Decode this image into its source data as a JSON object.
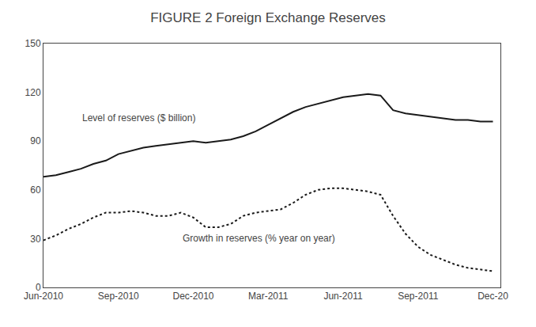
{
  "chart_data": {
    "type": "line",
    "title": "FIGURE 2 Foreign Exchange Reserves",
    "x": [
      0,
      0.5,
      1,
      1.5,
      2,
      2.5,
      3,
      3.5,
      4,
      4.5,
      5,
      5.5,
      6,
      6.5,
      7,
      7.5,
      8,
      8.5,
      9,
      9.5,
      10,
      10.5,
      11,
      11.5,
      12,
      12.5,
      13,
      13.5,
      14,
      14.5,
      15,
      15.5,
      16,
      16.5,
      17,
      17.5,
      18
    ],
    "series": [
      {
        "color": "#1a1a1a",
        "line_style": "solid",
        "values": [
          68,
          69,
          71,
          73,
          76,
          78,
          82,
          84,
          86,
          87,
          88,
          89,
          90,
          89,
          90,
          91,
          93,
          96,
          100,
          104,
          108,
          111,
          113,
          115,
          117,
          118,
          119,
          118,
          109,
          107,
          106,
          105,
          104,
          103,
          103,
          102,
          102
        ]
      },
      {
        "color": "#1a1a1a",
        "line_style": "dotted",
        "values": [
          29,
          32,
          36,
          39,
          43,
          46,
          46,
          47,
          46,
          44,
          44,
          46,
          43,
          37,
          37,
          39,
          44,
          46,
          47,
          48,
          52,
          57,
          60,
          61,
          61,
          60,
          59,
          57,
          44,
          33,
          25,
          20,
          17,
          14,
          12,
          11,
          10
        ]
      }
    ],
    "annotations": [
      {
        "text": "Level of reserves ($ billion)",
        "x": 1.5,
        "y": 100
      },
      {
        "text": "Growth in reserves (% year on year)",
        "x": 5.5,
        "y": 26
      }
    ],
    "xlim": [
      0,
      18.3
    ],
    "xticks": [
      {
        "value": 0,
        "label": "Jun-2010"
      },
      {
        "value": 3,
        "label": "Sep-2010"
      },
      {
        "value": 6,
        "label": "Dec-2010"
      },
      {
        "value": 9,
        "label": "Mar-2011"
      },
      {
        "value": 12,
        "label": "Jun-2011"
      },
      {
        "value": 15,
        "label": "Sep-2011"
      },
      {
        "value": 18,
        "label": "Dec-20"
      }
    ],
    "ylim": [
      0,
      150
    ],
    "yticks": [
      0,
      30,
      60,
      90,
      120,
      150
    ],
    "grid": false
  }
}
